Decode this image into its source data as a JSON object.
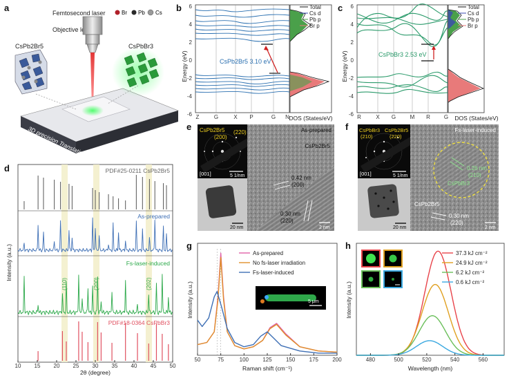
{
  "panels": {
    "a": {
      "label": "a",
      "laser": "Femtosecond laser",
      "lens": "Objective lens",
      "legend": [
        {
          "label": "Br",
          "color": "#b0202a"
        },
        {
          "label": "Pb",
          "color": "#2a2a2a"
        },
        {
          "label": "Cs",
          "color": "#9a9a9a"
        }
      ],
      "left_crystal": "CsPb2Br5",
      "right_crystal": "CsPbBr3",
      "stage": "3D precision Translation Stage"
    },
    "b": {
      "label": "b",
      "ylabel": "Energy (eV)",
      "kpoints": [
        "Z",
        "G",
        "X",
        "P",
        "G",
        "N"
      ],
      "gap_label": "CsPb2Br5 3.10 eV",
      "dos_label": "DOS (States/eV)",
      "legend": [
        "Total",
        "Cs d",
        "Pb p",
        "Br p"
      ]
    },
    "c": {
      "label": "c",
      "ylabel": "Energy (eV)",
      "kpoints": [
        "R",
        "X",
        "G",
        "M",
        "R",
        "G"
      ],
      "gap_label": "CsPbBr3 2.53 eV",
      "dos_label": "DOS (States/eV)",
      "legend": [
        "Total",
        "Cs d",
        "Pb p",
        "Br p"
      ]
    },
    "d": {
      "label": "d",
      "xlabel": "2θ (degree)",
      "ylabel": "Intensity (a.u.)",
      "ref_top": "PDF#25-0211 CsPb2Br5",
      "trace1": "As-prepared",
      "trace2": "Fs-laser-induced",
      "ref_bottom": "PDF#18-0364 CsPbBr3",
      "peaks": [
        "(110)",
        "(200)",
        "(202)"
      ]
    },
    "e": {
      "label": "e",
      "tag": "As-prepared",
      "phase": "CsPb2Br5",
      "saed_phase": "CsPb2Br5",
      "saed_plane1": "(200)",
      "saed_plane2": "(220)",
      "zone": "[001]",
      "saed_scale": "5 1/nm",
      "d1": "0.42 nm",
      "p1": "(200)",
      "d2": "0.30 nm",
      "p2": "(220)",
      "scale_low": "20 nm",
      "scale_hr": "2 nm"
    },
    "f": {
      "label": "f",
      "tag": "Fs-laser-induced",
      "saed_phase1": "CsPbBr3",
      "saed_plane1": "(210)",
      "saed_phase2": "CsPb2Br5",
      "saed_plane2": "(220)",
      "zone": "[001]",
      "saed_scale": "5 1/nm",
      "d1": "0.26 nm",
      "p1": "(210)",
      "phase_in": "CsPbBr3",
      "phase_out": "CsPb2Br5",
      "d2": "0.30 nm",
      "p2": "(220)",
      "scale_low": "20 nm",
      "scale_hr": "2 nm"
    },
    "g": {
      "label": "g",
      "legend": [
        "As-prepared",
        "No fs-laser irradiation",
        "Fs-laser-induced"
      ],
      "colors": [
        "#e060a8",
        "#e0902a",
        "#3e6fb5"
      ],
      "inset_scale": "5 μm"
    },
    "h": {
      "label": "h",
      "legend": [
        "37.3 kJ cm⁻²",
        "24.9 kJ cm⁻²",
        "6.2 kJ cm⁻²",
        "0.6 kJ cm⁻²"
      ],
      "colors": [
        "#e8434a",
        "#e0a020",
        "#6abf5a",
        "#3aa8e0"
      ],
      "inset_scale": ""
    }
  },
  "chart_data": [
    {
      "type": "line",
      "panel": "g",
      "xlabel": "Raman shift (cm⁻¹)",
      "ylabel": "Intensity (a.u.)",
      "xlim": [
        50,
        200
      ],
      "xticks": [
        50,
        75,
        100,
        125,
        150,
        175,
        200
      ],
      "series": [
        {
          "name": "As-prepared",
          "x": [
            50,
            60,
            68,
            72,
            75,
            78,
            82,
            90,
            100,
            110,
            120,
            128,
            135,
            145,
            160,
            180,
            200
          ],
          "y": [
            0.1,
            0.12,
            0.22,
            0.55,
            0.96,
            0.55,
            0.22,
            0.09,
            0.06,
            0.08,
            0.14,
            0.26,
            0.3,
            0.2,
            0.08,
            0.04,
            0.03
          ]
        },
        {
          "name": "No fs-laser irradiation",
          "x": [
            50,
            60,
            68,
            72,
            75,
            78,
            82,
            90,
            100,
            110,
            120,
            128,
            135,
            145,
            160,
            180,
            200
          ],
          "y": [
            0.1,
            0.12,
            0.22,
            0.52,
            0.92,
            0.52,
            0.22,
            0.09,
            0.06,
            0.08,
            0.14,
            0.25,
            0.29,
            0.19,
            0.08,
            0.04,
            0.03
          ]
        },
        {
          "name": "Fs-laser-induced",
          "x": [
            50,
            55,
            62,
            68,
            71,
            76,
            82,
            90,
            100,
            110,
            118,
            125,
            132,
            140,
            160,
            180,
            200
          ],
          "y": [
            0.33,
            0.27,
            0.35,
            0.55,
            0.6,
            0.45,
            0.25,
            0.12,
            0.08,
            0.1,
            0.18,
            0.22,
            0.16,
            0.09,
            0.04,
            0.02,
            0.02
          ]
        }
      ]
    },
    {
      "type": "line",
      "panel": "h",
      "xlabel": "Wavelength (nm)",
      "ylabel": "Intensity (a.u.)",
      "xlim": [
        470,
        575
      ],
      "xticks": [
        480,
        500,
        520,
        540,
        560
      ],
      "series": [
        {
          "name": "37.3 kJ cm⁻²",
          "center": 528,
          "fwhm": 22,
          "amp": 1.0
        },
        {
          "name": "24.9 kJ cm⁻²",
          "center": 526,
          "fwhm": 22,
          "amp": 0.68
        },
        {
          "name": "6.2 kJ cm⁻²",
          "center": 524,
          "fwhm": 22,
          "amp": 0.38
        },
        {
          "name": "0.6 kJ cm⁻²",
          "center": 522,
          "fwhm": 22,
          "amp": 0.14
        }
      ]
    },
    {
      "type": "line",
      "panel": "d",
      "xlabel": "2θ (degree)",
      "xlim": [
        10,
        50
      ],
      "xticks": [
        10,
        15,
        20,
        25,
        30,
        35,
        40,
        45,
        50
      ],
      "ref_CsPb2Br5_peaks": [
        11.6,
        15.2,
        16.6,
        19.4,
        21.0,
        23.2,
        24.0,
        29.3,
        30.0,
        31.0,
        33.4,
        34.6,
        36.0,
        37.8,
        40.6,
        42.2,
        44.0,
        45.4,
        47.6,
        48.4
      ],
      "ref_CsPbBr3_peaks": [
        15.2,
        21.5,
        22.5,
        25.7,
        26.6,
        28.1,
        30.6,
        31.5,
        34.3,
        37.8,
        40.9,
        43.8,
        45.8,
        47.3,
        48.9
      ]
    }
  ]
}
